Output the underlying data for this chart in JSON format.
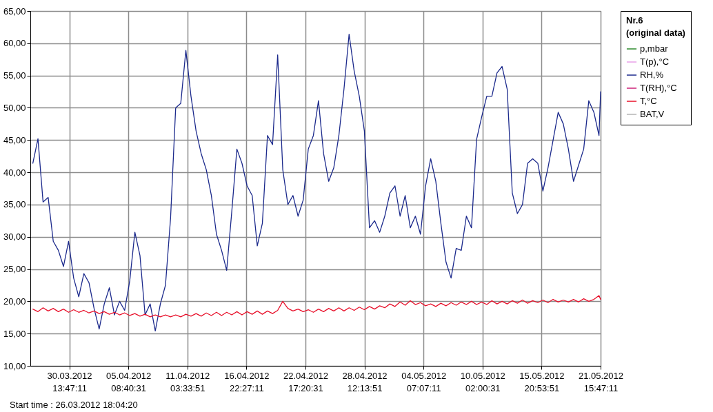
{
  "chart_data": {
    "type": "line",
    "legend_title": "Nr.6\n(original data)",
    "legend": "right",
    "grid": true,
    "line_style": "solid",
    "marker": "none",
    "annotations": [
      "Start time : 26.03.2012 18:04:20"
    ],
    "xlim": [
      "2012-03-26T18:04",
      "2012-05-21T15:47"
    ],
    "xticks": [
      {
        "value": "2012-03-30T13:47",
        "label": "30.03.2012 13:47:11"
      },
      {
        "value": "2012-04-05T08:40",
        "label": "05.04.2012 08:40:31"
      },
      {
        "value": "2012-04-11T03:33",
        "label": "11.04.2012 03:33:51"
      },
      {
        "value": "2012-04-16T22:27",
        "label": "16.04.2012 22:27:11"
      },
      {
        "value": "2012-04-22T17:20",
        "label": "22.04.2012 17:20:31"
      },
      {
        "value": "2012-04-28T12:13",
        "label": "28.04.2012 12:13:51"
      },
      {
        "value": "2012-05-04T07:07",
        "label": "04.05.2012 07:07:11"
      },
      {
        "value": "2012-05-10T02:00",
        "label": "10.05.2012 02:00:31"
      },
      {
        "value": "2012-05-15T20:53",
        "label": "15.05.2012 20:53:51"
      },
      {
        "value": "2012-05-21T15:47",
        "label": "21.05.2012 15:47:11"
      }
    ],
    "ylim": [
      10,
      65
    ],
    "yticks": [
      {
        "value": 10,
        "label": "10,00"
      },
      {
        "value": 15,
        "label": "15,00"
      },
      {
        "value": 20,
        "label": "20,00"
      },
      {
        "value": 25,
        "label": "25,00"
      },
      {
        "value": 30,
        "label": "30,00"
      },
      {
        "value": 35,
        "label": "35,00"
      },
      {
        "value": 40,
        "label": "40,00"
      },
      {
        "value": 45,
        "label": "45,00"
      },
      {
        "value": 50,
        "label": "50,00"
      },
      {
        "value": 55,
        "label": "55,00"
      },
      {
        "value": 60,
        "label": "60,00"
      },
      {
        "value": 65,
        "label": "65,00"
      }
    ],
    "x": [
      "2012-03-27T00:00",
      "2012-03-27T12:00",
      "2012-03-28T00:00",
      "2012-03-28T12:00",
      "2012-03-29T00:00",
      "2012-03-29T12:00",
      "2012-03-30T00:00",
      "2012-03-30T12:00",
      "2012-03-31T00:00",
      "2012-03-31T12:00",
      "2012-04-01T00:00",
      "2012-04-01T12:00",
      "2012-04-02T00:00",
      "2012-04-02T12:00",
      "2012-04-03T00:00",
      "2012-04-03T12:00",
      "2012-04-04T00:00",
      "2012-04-04T12:00",
      "2012-04-05T00:00",
      "2012-04-05T12:00",
      "2012-04-06T00:00",
      "2012-04-06T12:00",
      "2012-04-07T00:00",
      "2012-04-07T12:00",
      "2012-04-08T00:00",
      "2012-04-08T12:00",
      "2012-04-09T00:00",
      "2012-04-09T12:00",
      "2012-04-10T00:00",
      "2012-04-10T12:00",
      "2012-04-11T00:00",
      "2012-04-11T12:00",
      "2012-04-12T00:00",
      "2012-04-12T12:00",
      "2012-04-13T00:00",
      "2012-04-13T12:00",
      "2012-04-14T00:00",
      "2012-04-14T12:00",
      "2012-04-15T00:00",
      "2012-04-15T12:00",
      "2012-04-16T00:00",
      "2012-04-16T12:00",
      "2012-04-17T00:00",
      "2012-04-17T12:00",
      "2012-04-18T00:00",
      "2012-04-18T12:00",
      "2012-04-19T00:00",
      "2012-04-19T12:00",
      "2012-04-20T00:00",
      "2012-04-20T12:00",
      "2012-04-21T00:00",
      "2012-04-21T12:00",
      "2012-04-22T00:00",
      "2012-04-22T12:00",
      "2012-04-23T00:00",
      "2012-04-23T12:00",
      "2012-04-24T00:00",
      "2012-04-24T12:00",
      "2012-04-25T00:00",
      "2012-04-25T12:00",
      "2012-04-26T00:00",
      "2012-04-26T12:00",
      "2012-04-27T00:00",
      "2012-04-27T12:00",
      "2012-04-28T00:00",
      "2012-04-28T12:00",
      "2012-04-29T00:00",
      "2012-04-29T12:00",
      "2012-04-30T00:00",
      "2012-04-30T12:00",
      "2012-05-01T00:00",
      "2012-05-01T12:00",
      "2012-05-02T00:00",
      "2012-05-02T12:00",
      "2012-05-03T00:00",
      "2012-05-03T12:00",
      "2012-05-04T00:00",
      "2012-05-04T12:00",
      "2012-05-05T00:00",
      "2012-05-05T12:00",
      "2012-05-06T00:00",
      "2012-05-06T12:00",
      "2012-05-07T00:00",
      "2012-05-07T12:00",
      "2012-05-08T00:00",
      "2012-05-08T12:00",
      "2012-05-09T00:00",
      "2012-05-09T12:00",
      "2012-05-10T00:00",
      "2012-05-10T12:00",
      "2012-05-11T00:00",
      "2012-05-11T12:00",
      "2012-05-12T00:00",
      "2012-05-12T12:00",
      "2012-05-13T00:00",
      "2012-05-13T12:00",
      "2012-05-14T00:00",
      "2012-05-14T12:00",
      "2012-05-15T00:00",
      "2012-05-15T12:00",
      "2012-05-16T00:00",
      "2012-05-16T12:00",
      "2012-05-17T00:00",
      "2012-05-17T12:00",
      "2012-05-18T00:00",
      "2012-05-18T12:00",
      "2012-05-19T00:00",
      "2012-05-19T12:00",
      "2012-05-20T00:00",
      "2012-05-20T12:00",
      "2012-05-21T00:00",
      "2012-05-21T12:00",
      "2012-05-21T15:47"
    ],
    "series": [
      {
        "name": "p,mbar",
        "color": "#2e8b2e",
        "values": [
          null,
          null,
          null,
          null,
          null,
          null,
          null,
          null,
          null,
          null,
          null,
          null,
          null,
          null,
          null,
          null,
          null,
          null,
          null,
          null,
          null,
          null,
          null,
          null,
          null,
          null,
          null,
          null,
          null,
          null,
          null,
          null,
          null,
          null,
          null,
          null,
          null,
          null,
          null,
          null,
          null,
          null,
          null,
          null,
          null,
          null,
          null,
          null,
          null,
          null,
          null,
          null,
          null,
          null,
          null,
          null,
          null,
          null,
          null,
          null,
          null,
          null,
          null,
          null,
          null,
          null,
          null,
          null,
          null,
          null,
          null,
          null,
          null,
          null,
          null,
          null,
          null,
          null,
          null,
          null,
          null,
          null,
          null,
          null,
          null,
          null,
          null,
          null,
          null,
          null,
          null,
          null,
          null,
          null,
          null,
          null,
          null,
          null,
          null,
          null,
          null,
          null,
          null,
          null,
          null,
          null,
          null,
          null,
          null,
          null,
          null,
          null,
          null
        ]
      },
      {
        "name": "T(p),°C",
        "color": "#e8a0e8",
        "values": [
          null,
          null,
          null,
          null,
          null,
          null,
          null,
          null,
          null,
          null,
          null,
          null,
          null,
          null,
          null,
          null,
          null,
          null,
          null,
          null,
          null,
          null,
          null,
          null,
          null,
          null,
          null,
          null,
          null,
          null,
          null,
          null,
          null,
          null,
          null,
          null,
          null,
          null,
          null,
          null,
          null,
          null,
          null,
          null,
          null,
          null,
          null,
          null,
          null,
          null,
          null,
          null,
          null,
          null,
          null,
          null,
          null,
          null,
          null,
          null,
          null,
          null,
          null,
          null,
          null,
          null,
          null,
          null,
          null,
          null,
          null,
          null,
          null,
          null,
          null,
          null,
          null,
          null,
          null,
          null,
          null,
          null,
          null,
          null,
          null,
          null,
          null,
          null,
          null,
          null,
          null,
          null,
          null,
          null,
          null,
          null,
          null,
          null,
          null,
          null,
          null,
          null,
          null,
          null,
          null,
          null,
          null,
          null,
          null,
          null,
          null,
          null,
          null
        ]
      },
      {
        "name": "RH,%",
        "color": "#1c2a8c",
        "values": [
          41.4,
          45.2,
          35.4,
          36.1,
          29.3,
          27.9,
          25.4,
          29.3,
          23.6,
          20.7,
          24.3,
          22.9,
          18.9,
          15.7,
          19.6,
          22.1,
          17.9,
          20,
          18.6,
          23.2,
          30.7,
          27.1,
          17.9,
          19.6,
          15.4,
          19.6,
          22.5,
          32.9,
          50,
          50.7,
          58.9,
          51.8,
          46.4,
          42.9,
          40.4,
          36.4,
          30.4,
          27.9,
          24.8,
          33.9,
          43.6,
          41.4,
          37.9,
          36.4,
          28.6,
          32.1,
          45.7,
          44.3,
          58.2,
          40.4,
          35,
          36.4,
          33.2,
          35.7,
          43.6,
          45.7,
          51.1,
          42.9,
          38.6,
          40.7,
          45.7,
          52.9,
          61.4,
          55.7,
          51.8,
          46.4,
          31.4,
          32.5,
          30.7,
          33.2,
          36.8,
          37.9,
          33.2,
          36.4,
          31.4,
          33.2,
          30.4,
          37.9,
          42.1,
          38.6,
          32.1,
          26.1,
          23.6,
          28.2,
          27.9,
          33.2,
          31.4,
          45.1,
          48.6,
          51.8,
          51.8,
          55.4,
          56.4,
          52.9,
          36.8,
          33.6,
          35,
          41.4,
          42.1,
          41.4,
          37.1,
          40.7,
          45,
          49.3,
          47.5,
          43.6,
          38.6,
          41.1,
          43.6,
          51.1,
          49.3,
          45.7,
          52.5
        ]
      },
      {
        "name": "T(RH),°C",
        "color": "#cc2277",
        "values": [
          null,
          null,
          null,
          null,
          null,
          null,
          null,
          null,
          null,
          null,
          null,
          null,
          null,
          null,
          null,
          null,
          null,
          null,
          null,
          null,
          null,
          null,
          null,
          null,
          null,
          null,
          null,
          null,
          null,
          null,
          null,
          null,
          null,
          null,
          null,
          null,
          null,
          null,
          null,
          null,
          null,
          null,
          null,
          null,
          null,
          null,
          null,
          null,
          null,
          null,
          null,
          null,
          null,
          null,
          null,
          null,
          null,
          null,
          null,
          null,
          null,
          null,
          null,
          null,
          null,
          null,
          null,
          null,
          null,
          null,
          null,
          null,
          null,
          null,
          null,
          null,
          null,
          null,
          null,
          null,
          null,
          null,
          null,
          null,
          null,
          null,
          null,
          null,
          null,
          null,
          null,
          null,
          null,
          null,
          null,
          null,
          null,
          null,
          null,
          null,
          null,
          null,
          null,
          null,
          null,
          null,
          null,
          null,
          null,
          null,
          null,
          null,
          null
        ]
      },
      {
        "name": "T,°C",
        "color": "#e8102a",
        "values": [
          18.8,
          18.4,
          19.0,
          18.5,
          18.9,
          18.4,
          18.8,
          18.3,
          18.7,
          18.3,
          18.6,
          18.2,
          18.5,
          18.1,
          18.4,
          18.0,
          18.3,
          17.9,
          18.2,
          17.8,
          18.1,
          17.7,
          18.0,
          17.6,
          17.9,
          17.6,
          17.9,
          17.6,
          17.9,
          17.6,
          18.0,
          17.7,
          18.1,
          17.7,
          18.2,
          17.8,
          18.3,
          17.8,
          18.3,
          17.9,
          18.4,
          17.9,
          18.4,
          18.0,
          18.5,
          18.0,
          18.5,
          18.1,
          18.6,
          20.0,
          18.9,
          18.5,
          18.8,
          18.4,
          18.7,
          18.3,
          18.8,
          18.4,
          18.9,
          18.5,
          19.0,
          18.5,
          19.0,
          18.6,
          19.1,
          18.7,
          19.2,
          18.8,
          19.3,
          19.0,
          19.6,
          19.2,
          19.9,
          19.4,
          20.1,
          19.5,
          19.8,
          19.3,
          19.6,
          19.2,
          19.7,
          19.3,
          19.8,
          19.4,
          19.9,
          19.5,
          20.0,
          19.5,
          19.9,
          19.5,
          20.1,
          19.6,
          20.0,
          19.6,
          20.1,
          19.7,
          20.2,
          19.7,
          20.1,
          19.8,
          20.2,
          19.8,
          20.3,
          19.9,
          20.2,
          19.9,
          20.3,
          19.9,
          20.4,
          20.0,
          20.3,
          20.9,
          20.3
        ]
      },
      {
        "name": "BAT,V",
        "color": "#b4b4b4",
        "values": [
          null,
          null,
          null,
          null,
          null,
          null,
          null,
          null,
          null,
          null,
          null,
          null,
          null,
          null,
          null,
          null,
          null,
          null,
          null,
          null,
          null,
          null,
          null,
          null,
          null,
          null,
          null,
          null,
          null,
          null,
          null,
          null,
          null,
          null,
          null,
          null,
          null,
          null,
          null,
          null,
          null,
          null,
          null,
          null,
          null,
          null,
          null,
          null,
          null,
          null,
          null,
          null,
          null,
          null,
          null,
          null,
          null,
          null,
          null,
          null,
          null,
          null,
          null,
          null,
          null,
          null,
          null,
          null,
          null,
          null,
          null,
          null,
          null,
          null,
          null,
          null,
          null,
          null,
          null,
          null,
          null,
          null,
          null,
          null,
          null,
          null,
          null,
          null,
          null,
          null,
          null,
          null,
          null,
          null,
          null,
          null,
          null,
          null,
          null,
          null,
          null,
          null,
          null,
          null,
          null,
          null,
          null,
          null,
          null,
          null,
          null,
          null,
          null
        ]
      }
    ]
  }
}
